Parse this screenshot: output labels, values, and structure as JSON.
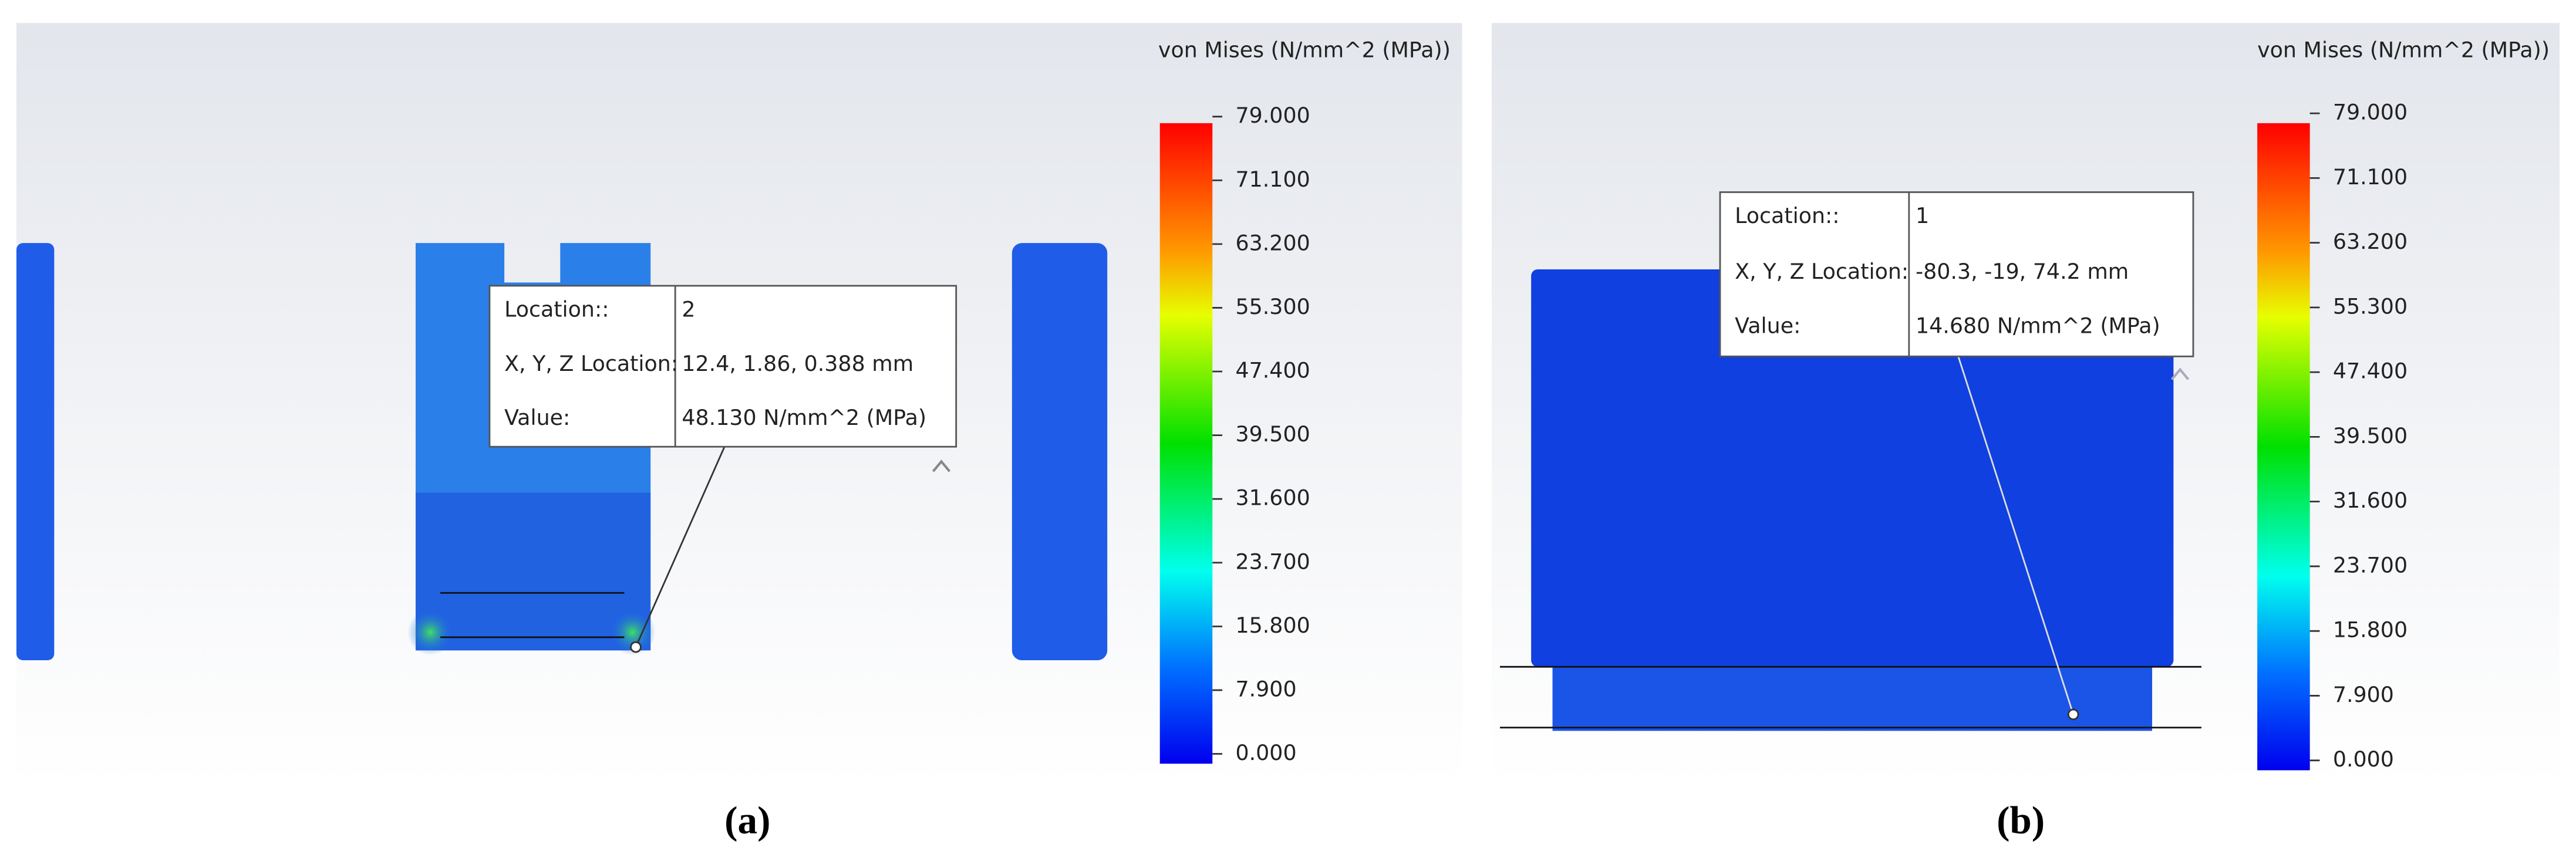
{
  "panels": [
    {
      "legend_title": "von Mises (N/mm^2 (MPa))",
      "legend_labels": [
        "79.000",
        "71.100",
        "63.200",
        "55.300",
        "47.400",
        "39.500",
        "31.600",
        "23.700",
        "15.800",
        "7.900",
        "0.000"
      ],
      "probe": {
        "rows": [
          [
            "Location::",
            "2"
          ],
          [
            "X, Y, Z Location:",
            "12.4, 1.86, 0.388 mm"
          ],
          [
            "Value:",
            "48.130 N/mm^2 (MPa)"
          ]
        ]
      },
      "caption": "(a)"
    },
    {
      "legend_title": "von Mises (N/mm^2 (MPa))",
      "legend_labels": [
        "79.000",
        "71.100",
        "63.200",
        "55.300",
        "47.400",
        "39.500",
        "31.600",
        "23.700",
        "15.800",
        "7.900",
        "0.000"
      ],
      "probe": {
        "rows": [
          [
            "Location::",
            "1"
          ],
          [
            "X, Y, Z Location:",
            "-80.3, -19, 74.2 mm"
          ],
          [
            "Value:",
            "14.680 N/mm^2 (MPa)"
          ]
        ]
      },
      "caption": "(b)"
    }
  ]
}
